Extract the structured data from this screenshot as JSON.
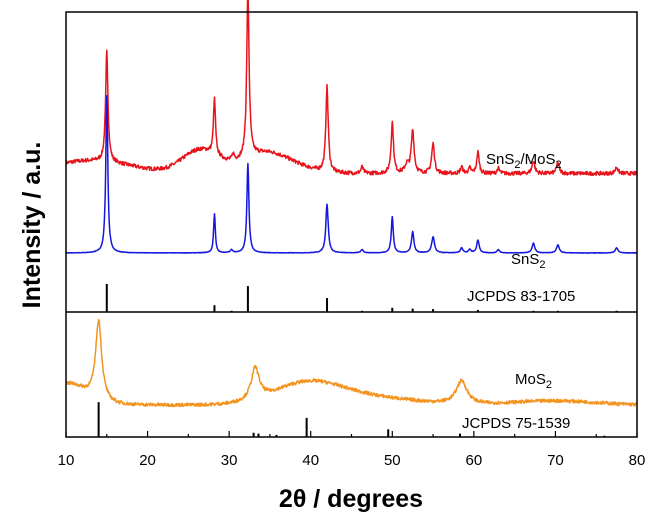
{
  "chart_data": {
    "type": "line",
    "title": "",
    "xlabel": "2θ / degrees",
    "ylabel": "Intensity / a.u.",
    "xlim": [
      10,
      80
    ],
    "ylim": [
      0,
      100
    ],
    "xticks": [
      10,
      20,
      30,
      40,
      50,
      60,
      70,
      80
    ],
    "grid": false,
    "panel_divider_intensity": 29.4,
    "series": [
      {
        "name": "SnS2/MoS2",
        "label_main": "SnS",
        "label_sub1": "2",
        "label_mid": "/MoS",
        "label_sub2": "2",
        "color": "#e8141c",
        "baseline": 62,
        "noise": 0.45,
        "broad": [
          [
            13,
            3,
            5
          ],
          [
            26.5,
            5.5,
            2.2
          ],
          [
            34,
            4,
            2.8
          ],
          [
            37,
            1.5,
            3
          ]
        ],
        "peaks": [
          [
            15,
            26,
            0.35
          ],
          [
            28.2,
            13,
            0.3
          ],
          [
            30.5,
            1.5,
            0.3
          ],
          [
            32.3,
            39.5,
            0.35
          ],
          [
            42,
            20,
            0.35
          ],
          [
            46.3,
            1.5,
            0.35
          ],
          [
            50,
            12,
            0.35
          ],
          [
            51.8,
            2,
            0.6
          ],
          [
            52.5,
            10,
            0.4
          ],
          [
            55,
            7,
            0.4
          ],
          [
            58.5,
            1.5,
            0.35
          ],
          [
            59.5,
            1.2,
            0.35
          ],
          [
            60.5,
            5,
            0.35
          ],
          [
            63,
            1.2,
            0.35
          ],
          [
            67.3,
            3,
            0.4
          ],
          [
            70.3,
            2.5,
            0.4
          ],
          [
            77.5,
            1.5,
            0.4
          ]
        ]
      },
      {
        "name": "SnS2",
        "label_main": "SnS",
        "label_sub1": "2",
        "color": "#1515e0",
        "baseline": 43.3,
        "noise": 0.05,
        "broad": [],
        "peaks": [
          [
            15,
            37,
            0.3
          ],
          [
            28.2,
            9.2,
            0.25
          ],
          [
            30.3,
            0.7,
            0.35
          ],
          [
            32.3,
            21,
            0.3
          ],
          [
            42,
            11.5,
            0.35
          ],
          [
            46.3,
            0.8,
            0.35
          ],
          [
            50,
            8.5,
            0.3
          ],
          [
            52.5,
            5,
            0.35
          ],
          [
            55,
            3.8,
            0.4
          ],
          [
            58.5,
            1.2,
            0.35
          ],
          [
            59.5,
            0.8,
            0.35
          ],
          [
            60.5,
            3,
            0.35
          ],
          [
            63,
            0.8,
            0.35
          ],
          [
            67.3,
            2.3,
            0.4
          ],
          [
            70.3,
            1.9,
            0.4
          ],
          [
            77.5,
            1.2,
            0.4
          ]
        ]
      },
      {
        "name": "MoS2",
        "label_main": "MoS",
        "label_sub1": "2",
        "color": "#f39420",
        "baseline": 7.5,
        "noise": 0.4,
        "broad": [
          [
            10,
            5,
            2.5
          ],
          [
            39.5,
            4.5,
            4
          ],
          [
            46,
            2,
            6
          ],
          [
            70,
            1,
            5
          ]
        ],
        "peaks": [
          [
            14,
            18.6,
            0.9
          ],
          [
            33.2,
            7.5,
            1.2
          ],
          [
            58.5,
            5.5,
            1.6
          ]
        ]
      }
    ],
    "references": [
      {
        "name": "JCPDS 83-1705",
        "color": "#000000",
        "baseline": 29.4,
        "sticks": [
          [
            15,
            6.6
          ],
          [
            28.2,
            1.6
          ],
          [
            30.3,
            0.3
          ],
          [
            32.3,
            6.1
          ],
          [
            42,
            3.3
          ],
          [
            46.3,
            0.3
          ],
          [
            50,
            1.0
          ],
          [
            52.5,
            0.8
          ],
          [
            55,
            0.7
          ],
          [
            60.5,
            0.5
          ],
          [
            67.3,
            0.3
          ],
          [
            70.3,
            0.3
          ],
          [
            77.5,
            0.3
          ]
        ]
      },
      {
        "name": "JCPDS 75-1539",
        "color": "#000000",
        "baseline": 0,
        "sticks": [
          [
            14,
            8.2
          ],
          [
            33,
            1.0
          ],
          [
            33.6,
            0.8
          ],
          [
            35.8,
            0.5
          ],
          [
            39.5,
            4.5
          ],
          [
            49.5,
            1.8
          ],
          [
            58.3,
            0.8
          ],
          [
            76,
            0.3
          ]
        ]
      }
    ]
  }
}
